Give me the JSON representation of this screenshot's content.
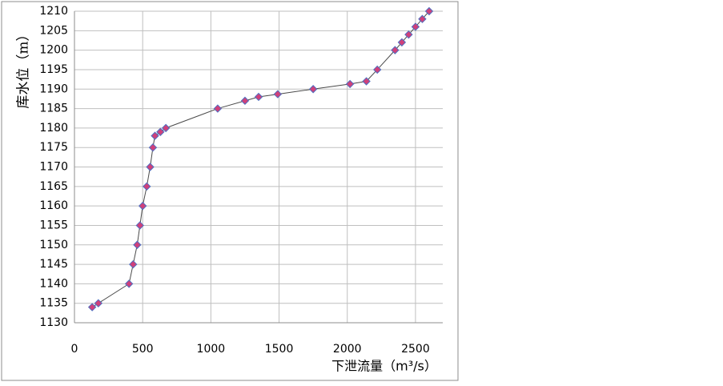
{
  "chart_data": {
    "type": "line",
    "x_label": "下泄流量（m³/s）",
    "y_label": "库水位（m）",
    "x": [
      130,
      175,
      400,
      430,
      460,
      480,
      500,
      530,
      555,
      575,
      590,
      630,
      670,
      1050,
      1250,
      1350,
      1490,
      1750,
      2020,
      2140,
      2220,
      2350,
      2400,
      2450,
      2500,
      2550,
      2600
    ],
    "values": [
      1134,
      1135,
      1140,
      1145,
      1150,
      1155,
      1160,
      1165,
      1170,
      1175,
      1178,
      1179,
      1180,
      1185,
      1187,
      1188,
      1188.7,
      1190,
      1191.3,
      1192,
      1195,
      1200,
      1202,
      1204,
      1206,
      1208,
      1210
    ],
    "color": "#d0407a",
    "line_color": "#4a4a4a",
    "xlim": [
      0,
      2700
    ],
    "xticks": [
      0,
      500,
      1000,
      1500,
      2000,
      2500
    ],
    "ylim": [
      1130,
      1210
    ],
    "yticks": [
      1130,
      1135,
      1140,
      1145,
      1150,
      1155,
      1160,
      1165,
      1170,
      1175,
      1180,
      1185,
      1190,
      1195,
      1200,
      1205,
      1210
    ],
    "grid": true
  }
}
